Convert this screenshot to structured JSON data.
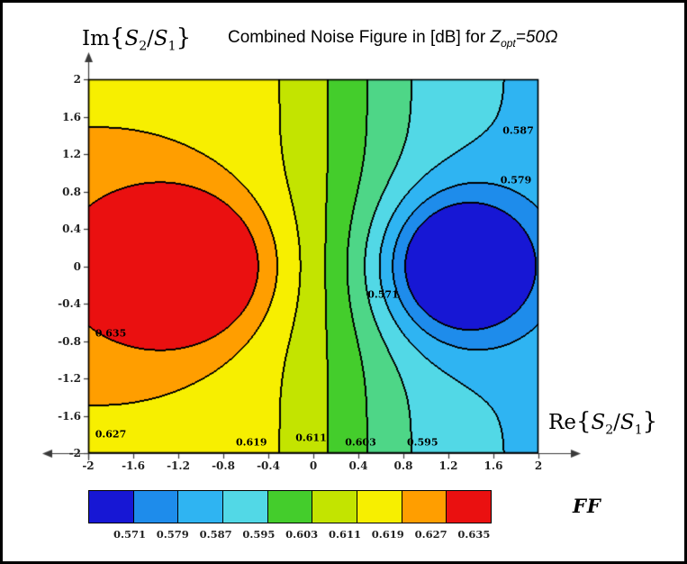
{
  "title": {
    "prefix": "Combined Noise Figure in [dB] for ",
    "z_var": "Z",
    "z_sub": "opt",
    "suffix": "=50",
    "omega": "Ω"
  },
  "ylabel": {
    "fn": "Im",
    "open": "{",
    "s_a": "S",
    "sub_a": "2",
    "slash": "/",
    "s_b": "S",
    "sub_b": "1",
    "close": "}"
  },
  "xlabel": {
    "fn": "Re",
    "open": "{",
    "s_a": "S",
    "sub_a": "2",
    "slash": "/",
    "s_b": "S",
    "sub_b": "1",
    "close": "}"
  },
  "legend": {
    "label": "FF"
  },
  "chart_data": {
    "type": "contour",
    "title": "Combined Noise Figure in [dB] for Zopt=50Ω",
    "xlabel": "Re{S2/S1}",
    "ylabel": "Im{S2/S1}",
    "xlim": [
      -2,
      2
    ],
    "ylim": [
      -2,
      2
    ],
    "grid": false,
    "x_ticks": [
      "-2",
      "-1.6",
      "-1.2",
      "-0.8",
      "-0.4",
      "0",
      "0.4",
      "0.8",
      "1.2",
      "1.6",
      "2"
    ],
    "y_ticks": [
      "2",
      "1.6",
      "1.2",
      "0.8",
      "0.4",
      "0",
      "-0.4",
      "-0.8",
      "-1.2",
      "-1.6",
      "-2"
    ],
    "levels": [
      0.571,
      0.579,
      0.587,
      0.595,
      0.603,
      0.611,
      0.619,
      0.627,
      0.635
    ],
    "band_colors": [
      "#1717d4",
      "#1e8ceb",
      "#2fb4f2",
      "#52d8e6",
      "#4ed687",
      "#44cd2c",
      "#c3e400",
      "#f7ef00",
      "#ff9e00",
      "#ea1010"
    ],
    "legend_colors": [
      "#1717d4",
      "#1e8ceb",
      "#2fb4f2",
      "#52d8e6",
      "#44cd2c",
      "#c3e400",
      "#f7ef00",
      "#ff9e00",
      "#ea1010"
    ],
    "legend_labels": [
      "0.571",
      "0.579",
      "0.587",
      "0.595",
      "0.603",
      "0.611",
      "0.619",
      "0.627",
      "0.635"
    ],
    "legend_title": "FF",
    "contour_labels": [
      {
        "value": "0.587",
        "x": 1.82,
        "y": 1.45
      },
      {
        "value": "0.579",
        "x": 1.8,
        "y": 0.92
      },
      {
        "value": "0.571",
        "x": 0.62,
        "y": -0.3
      },
      {
        "value": "0.635",
        "x": -1.8,
        "y": -0.72
      },
      {
        "value": "0.627",
        "x": -1.8,
        "y": -1.8
      },
      {
        "value": "0.619",
        "x": -0.55,
        "y": -1.88
      },
      {
        "value": "0.611",
        "x": -0.02,
        "y": -1.84
      },
      {
        "value": "0.603",
        "x": 0.42,
        "y": -1.88
      },
      {
        "value": "0.595",
        "x": 0.97,
        "y": -1.88
      }
    ],
    "high_region_center": [
      -1.3,
      0
    ],
    "low_region_center": [
      1.3,
      0
    ],
    "field_model": {
      "base": 0.606,
      "tilt_amp": 0.021,
      "tilt_x0": 0.35,
      "tilt_w": 0.9,
      "peak": {
        "amp": 0.045,
        "x": -1.3,
        "wx": 0.55,
        "wy": 0.5
      },
      "dip": {
        "amp": 0.042,
        "x": 1.3,
        "wx": 0.45,
        "wy": 0.55
      }
    }
  }
}
